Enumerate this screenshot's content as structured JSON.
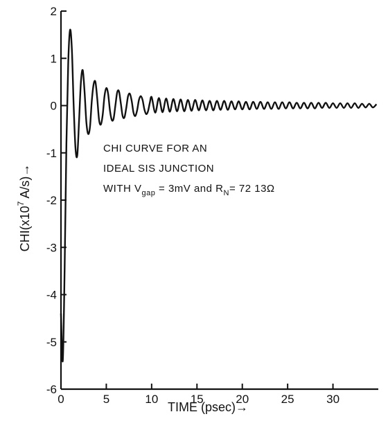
{
  "chart_data": {
    "type": "line",
    "title": "",
    "xlabel": "TIME (psec)→",
    "ylabel_main": "CHI(x10",
    "ylabel_exp": "7",
    "ylabel_tail": " A/s)→",
    "xlim": [
      0,
      35
    ],
    "ylim": [
      -6,
      2
    ],
    "x_ticks": [
      0,
      5,
      10,
      15,
      20,
      25,
      30
    ],
    "x_tick_labels": [
      "0",
      "5",
      "10",
      "15",
      "20",
      "25",
      "30"
    ],
    "y_ticks": [
      2,
      1,
      0,
      -1,
      -2,
      -3,
      -4,
      -5,
      -6
    ],
    "y_tick_labels": [
      "2",
      "1",
      "0",
      "-1",
      "-2",
      "-3",
      "-4",
      "-5",
      "-6"
    ],
    "grid": false,
    "legend": "none",
    "annotation": {
      "line1": "CHI CURVE FOR AN",
      "line2": "IDEAL SIS JUNCTION",
      "line3_prefix": "WITH  V",
      "line3_sub1": "gap",
      "line3_mid": " = 3mV  and  R",
      "line3_sub2": "N",
      "line3_suffix": "= 72 13Ω"
    },
    "series": [
      {
        "x": [
          0.0,
          0.2,
          0.4,
          0.6,
          0.8,
          1.0,
          1.2,
          1.4,
          1.6,
          1.8,
          2.0,
          2.2,
          2.4,
          2.6,
          2.8,
          3.0,
          3.2,
          3.4,
          3.6,
          3.8,
          4.0,
          4.2,
          4.4,
          4.6,
          4.8,
          5.0,
          5.2,
          5.4,
          5.6,
          5.8,
          6.0,
          6.2,
          6.4,
          6.6,
          6.8,
          7.0,
          7.2,
          7.4,
          7.6,
          7.8,
          8.0,
          8.2,
          8.4,
          8.6,
          8.8,
          9.0,
          9.2,
          9.4,
          9.6,
          9.8,
          10.0,
          10.4,
          10.8,
          11.2,
          11.6,
          12.0,
          12.4,
          12.8,
          13.2,
          13.6,
          14.0,
          14.4,
          14.8,
          15.2,
          15.6,
          16.0,
          16.4,
          16.8,
          17.2,
          17.6,
          18.0,
          18.4,
          18.8,
          19.2,
          19.6,
          20.0,
          20.4,
          20.8,
          21.2,
          21.6,
          22.0,
          22.4,
          22.8,
          23.2,
          23.6,
          24.0,
          24.4,
          24.8,
          25.2,
          25.6,
          26.0,
          26.4,
          26.8,
          27.2,
          27.6,
          28.0,
          28.4,
          28.8,
          29.2,
          29.6,
          30.0,
          30.4,
          30.8,
          31.2,
          31.6,
          32.0,
          32.4,
          32.8,
          33.2,
          33.6,
          34.0,
          34.4,
          34.8
        ],
        "y": [
          -4.4,
          -5.4,
          -3.5,
          -0.8,
          0.9,
          1.6,
          1.2,
          0.0,
          -0.9,
          -1.05,
          -0.3,
          0.5,
          0.75,
          0.3,
          -0.35,
          -0.6,
          -0.45,
          0.1,
          0.45,
          0.5,
          0.15,
          -0.3,
          -0.4,
          -0.2,
          0.2,
          0.37,
          0.25,
          -0.1,
          -0.3,
          -0.28,
          0.0,
          0.28,
          0.3,
          0.05,
          -0.22,
          -0.25,
          -0.05,
          0.2,
          0.25,
          0.1,
          -0.15,
          -0.22,
          -0.1,
          0.12,
          0.2,
          0.12,
          -0.08,
          -0.18,
          -0.12,
          0.06,
          0.18,
          -0.15,
          0.16,
          -0.14,
          0.15,
          -0.13,
          0.14,
          -0.12,
          0.13,
          -0.12,
          0.12,
          -0.11,
          0.12,
          -0.1,
          0.11,
          -0.1,
          0.1,
          -0.1,
          0.1,
          -0.09,
          0.1,
          -0.09,
          0.09,
          -0.08,
          0.09,
          -0.08,
          0.08,
          -0.08,
          0.08,
          -0.07,
          0.08,
          -0.07,
          0.07,
          -0.07,
          0.07,
          -0.07,
          0.07,
          -0.06,
          0.07,
          -0.06,
          0.06,
          -0.06,
          0.06,
          -0.06,
          0.06,
          -0.06,
          0.06,
          -0.05,
          0.06,
          -0.05,
          0.05,
          -0.05,
          0.05,
          -0.05,
          0.05,
          -0.05,
          0.05,
          -0.05,
          0.04,
          -0.04,
          0.04,
          -0.04,
          0.03
        ]
      }
    ]
  }
}
